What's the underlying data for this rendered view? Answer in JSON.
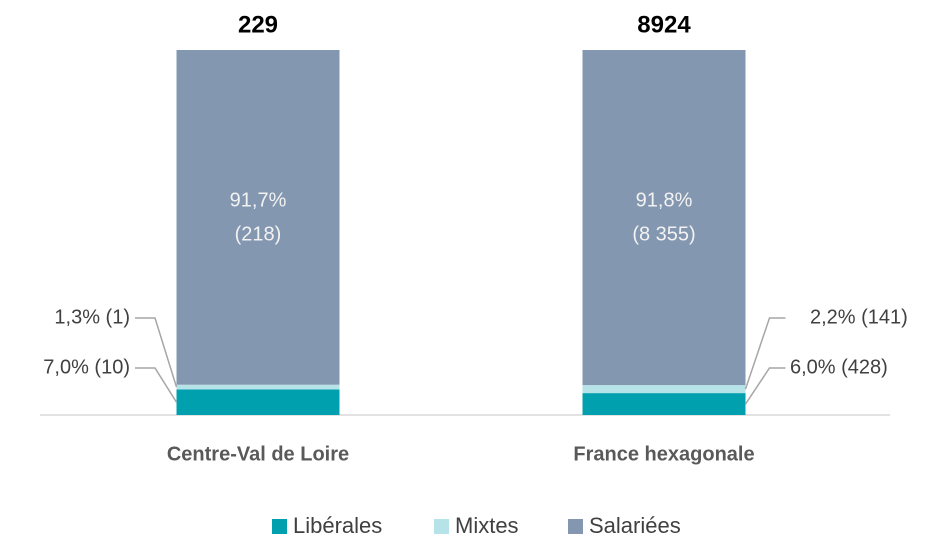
{
  "chart_data": {
    "type": "stacked_bar_100",
    "categories": [
      "Centre-Val de Loire",
      "France hexagonale"
    ],
    "totals": [
      229,
      8924
    ],
    "series": [
      {
        "name": "Libérales",
        "color": "#00a0af",
        "values": [
          7.0,
          6.0
        ],
        "value_labels": [
          "7,0% (10)",
          "6,0% (428)"
        ]
      },
      {
        "name": "Mixtes",
        "color": "#b5e3e8",
        "values": [
          1.3,
          2.2
        ],
        "value_labels": [
          "1,3% (1)",
          "2,2% (141)"
        ]
      },
      {
        "name": "Salariées",
        "color": "#8497b0",
        "values": [
          91.7,
          91.8
        ],
        "value_labels": [
          "91,7%\n(218)",
          "91,8%\n(8 355)"
        ]
      }
    ]
  }
}
